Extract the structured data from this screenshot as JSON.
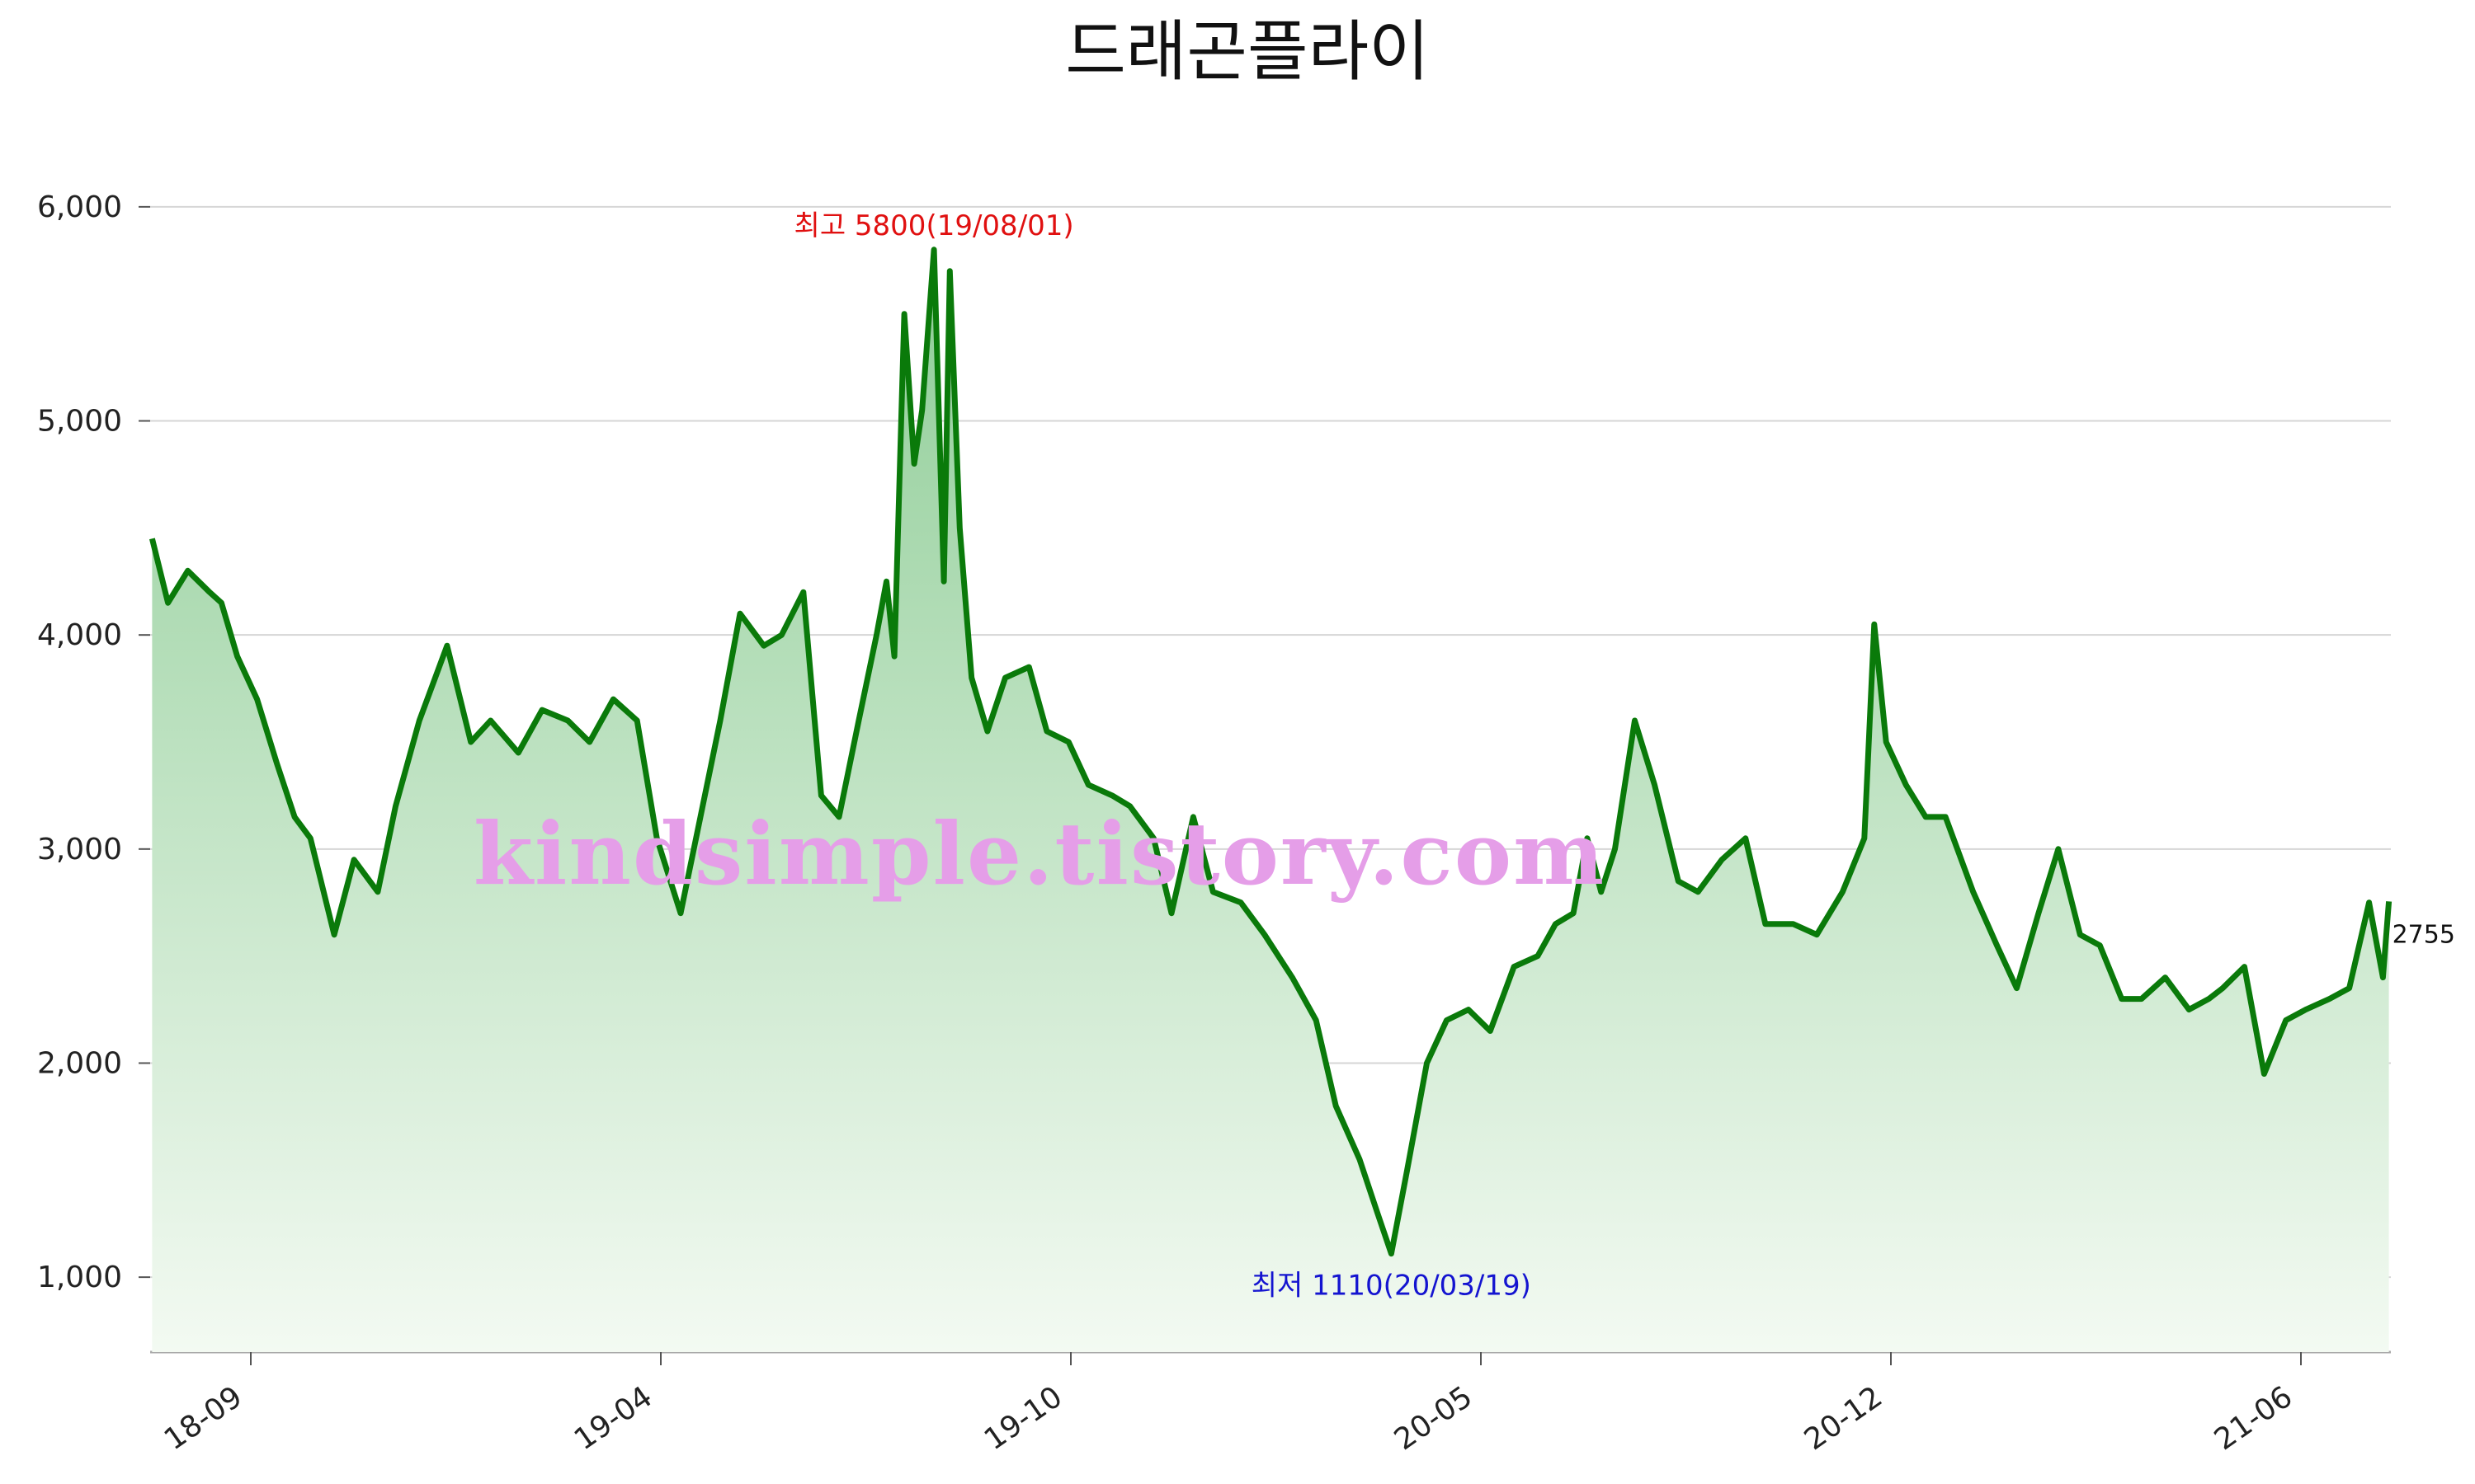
{
  "chart_data": {
    "type": "area",
    "title": "드래곤플라이",
    "x_ticks": [
      "18-09",
      "19-04",
      "19-10",
      "20-05",
      "20-12",
      "21-06"
    ],
    "y_ticks": [
      1000,
      2000,
      3000,
      4000,
      5000,
      6000
    ],
    "y_tick_labels": [
      "1,000",
      "2,000",
      "3,000",
      "4,000",
      "5,000",
      "6,000"
    ],
    "ylim": [
      650,
      6350
    ],
    "xlim": [
      "2018-07-01",
      "2021-08-06"
    ],
    "grid": true,
    "line_color": "#0a7a0a",
    "fill_color_top": "#8fcd97",
    "fill_color_bottom": "#f3faf2",
    "annotations": {
      "high_label": "최고 5800(19/08/01)",
      "high_color": "#e01010",
      "low_label": "최저 1110(20/03/19)",
      "low_color": "#1414d0",
      "last_label": "2755"
    },
    "watermark": "kindsimple.tistory.com",
    "series": [
      {
        "x": [
          "2018-07-02",
          "2018-07-10",
          "2018-07-20",
          "2018-07-31",
          "2018-08-06",
          "2018-08-14",
          "2018-08-24",
          "2018-09-03",
          "2018-09-12",
          "2018-09-20",
          "2018-10-02",
          "2018-10-12",
          "2018-10-24",
          "2018-11-02",
          "2018-11-14",
          "2018-11-28",
          "2018-12-10",
          "2018-12-20",
          "2019-01-03",
          "2019-01-15",
          "2019-01-28",
          "2019-02-08",
          "2019-02-20",
          "2019-03-04",
          "2019-03-14",
          "2019-03-26",
          "2019-04-05",
          "2019-04-15",
          "2019-04-25",
          "2019-05-07",
          "2019-05-16",
          "2019-05-27",
          "2019-06-05",
          "2019-06-14",
          "2019-06-24",
          "2019-07-03",
          "2019-07-08",
          "2019-07-12",
          "2019-07-17",
          "2019-07-22",
          "2019-07-26",
          "2019-08-01",
          "2019-08-06",
          "2019-08-09",
          "2019-08-14",
          "2019-08-20",
          "2019-08-28",
          "2019-09-06",
          "2019-09-18",
          "2019-09-27",
          "2019-10-08",
          "2019-10-18",
          "2019-10-30",
          "2019-11-08",
          "2019-11-20",
          "2019-11-29",
          "2019-12-10",
          "2019-12-20",
          "2020-01-03",
          "2020-01-15",
          "2020-01-29",
          "2020-02-10",
          "2020-02-20",
          "2020-03-03",
          "2020-03-12",
          "2020-03-19",
          "2020-03-27",
          "2020-04-06",
          "2020-04-16",
          "2020-04-27",
          "2020-05-08",
          "2020-05-20",
          "2020-06-01",
          "2020-06-10",
          "2020-06-19",
          "2020-06-26",
          "2020-07-03",
          "2020-07-10",
          "2020-07-20",
          "2020-07-30",
          "2020-08-11",
          "2020-08-21",
          "2020-09-02",
          "2020-09-14",
          "2020-09-24",
          "2020-10-08",
          "2020-10-20",
          "2020-11-02",
          "2020-11-13",
          "2020-11-18",
          "2020-11-24",
          "2020-12-04",
          "2020-12-14",
          "2020-12-24",
          "2021-01-07",
          "2021-01-19",
          "2021-01-29",
          "2021-02-09",
          "2021-02-19",
          "2021-03-02",
          "2021-03-12",
          "2021-03-23",
          "2021-04-02",
          "2021-04-14",
          "2021-04-26",
          "2021-05-06",
          "2021-05-13",
          "2021-05-24",
          "2021-06-03",
          "2021-06-14",
          "2021-06-24",
          "2021-07-06",
          "2021-07-16",
          "2021-07-26",
          "2021-08-02",
          "2021-08-05"
        ],
        "values": [
          4450,
          4150,
          4300,
          4200,
          4150,
          3900,
          3700,
          3400,
          3150,
          3050,
          2600,
          2950,
          2800,
          3200,
          3600,
          3950,
          3500,
          3600,
          3450,
          3650,
          3600,
          3500,
          3700,
          3600,
          3050,
          2700,
          3150,
          3600,
          4100,
          3950,
          4000,
          4200,
          3250,
          3150,
          3600,
          4000,
          4250,
          3900,
          5500,
          4800,
          5050,
          5800,
          4250,
          5700,
          4500,
          3800,
          3550,
          3800,
          3850,
          3550,
          3500,
          3300,
          3250,
          3200,
          3050,
          2700,
          3150,
          2800,
          2750,
          2600,
          2400,
          2200,
          1800,
          1550,
          1300,
          1110,
          1500,
          2000,
          2200,
          2250,
          2150,
          2450,
          2500,
          2650,
          2700,
          3050,
          2800,
          3000,
          3600,
          3300,
          2850,
          2800,
          2950,
          3050,
          2650,
          2650,
          2600,
          2800,
          3050,
          4050,
          3500,
          3300,
          3150,
          3150,
          2800,
          2550,
          2350,
          2700,
          3000,
          2600,
          2550,
          2300,
          2300,
          2400,
          2250,
          2300,
          2350,
          2450,
          1950,
          2200,
          2250,
          2300,
          2350,
          2750,
          2400,
          2755
        ]
      }
    ]
  }
}
